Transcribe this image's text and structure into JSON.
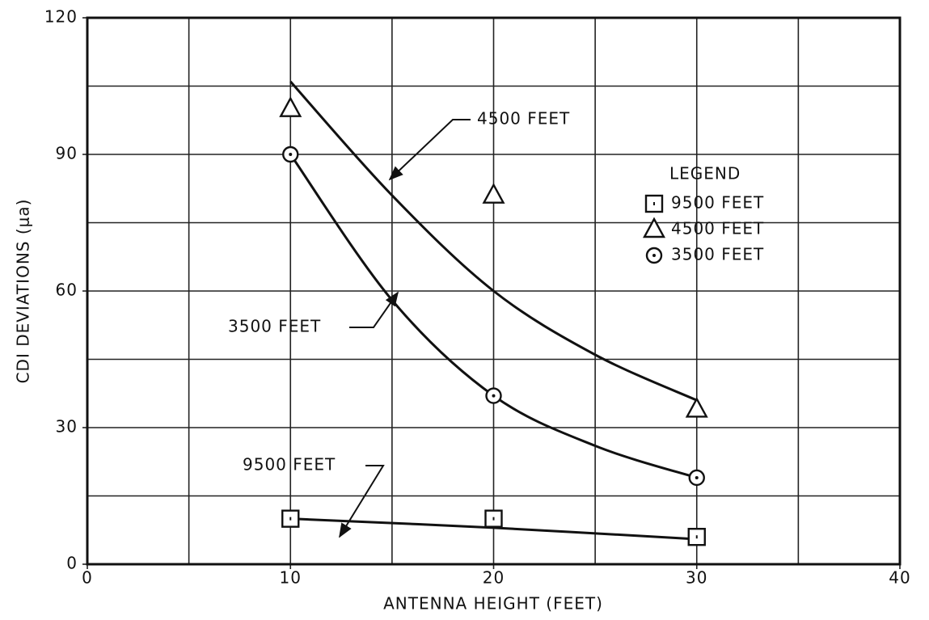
{
  "chart_data": {
    "type": "scatter",
    "xlabel": "ANTENNA HEIGHT (FEET)",
    "ylabel": "CDI DEVIATIONS (μa)",
    "xlim": [
      0,
      40
    ],
    "xticks": [
      0,
      10,
      20,
      30,
      40
    ],
    "ylim": [
      0,
      120
    ],
    "yticks": [
      0,
      30,
      60,
      90,
      120
    ],
    "grid": true,
    "minor_grid": true,
    "legend_title": "LEGEND",
    "legend": "upper right",
    "x": [
      10,
      20,
      30
    ],
    "series": [
      {
        "name": "9500 FEET",
        "marker": "square",
        "color": "#111",
        "values": [
          10,
          10,
          6
        ],
        "curve": {
          "x": [
            10,
            20,
            30
          ],
          "y": [
            10,
            8,
            5.5
          ]
        }
      },
      {
        "name": "4500 FEET",
        "marker": "triangle",
        "color": "#111",
        "values": [
          100,
          81,
          34
        ],
        "curve": {
          "x": [
            10,
            15,
            20,
            25,
            30
          ],
          "y": [
            106,
            81,
            60,
            46,
            36
          ]
        }
      },
      {
        "name": "3500 FEET",
        "marker": "circle",
        "color": "#111",
        "values": [
          90,
          37,
          19
        ],
        "curve": {
          "x": [
            10,
            15,
            20,
            25,
            30
          ],
          "y": [
            90,
            58,
            37,
            26,
            19
          ]
        }
      }
    ],
    "annotations": [
      "4500 FEET",
      "3500 FEET",
      "9500 FEET"
    ]
  }
}
